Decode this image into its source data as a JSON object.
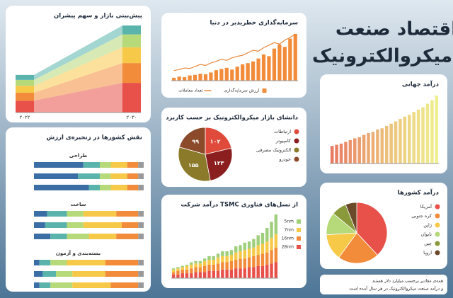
{
  "title_lines": [
    "اقتصاد صنعت",
    "میکروالکترونیک"
  ],
  "note_lines": [
    "همه‌ی مقادیر برحسب میلیارد دلار هستند",
    "و درآمد صنعت میکروالکترونیک در هر سال آمده است"
  ],
  "chart_data": [
    {
      "type": "stack",
      "title": "پیش‌بینی بازار و سهم پیشران",
      "categories": [
        "۲۰۲۲",
        "۲۰۳۰"
      ],
      "series": [
        {
          "color": "#e8504a",
          "values": [
            120,
            300
          ]
        },
        {
          "color": "#f28c3b",
          "values": [
            80,
            200
          ]
        },
        {
          "color": "#f7c948",
          "values": [
            70,
            160
          ]
        },
        {
          "color": "#b6d97a",
          "values": [
            60,
            130
          ]
        },
        {
          "color": "#5ab4ac",
          "values": [
            50,
            90
          ]
        }
      ]
    },
    {
      "type": "combo",
      "title": "سرمایه‌گذاری خطرپذیر در دنیا",
      "series": [
        {
          "name": "ارزش سرمایه‌گذاری",
          "kind": "bar",
          "color": "#f28c3b",
          "values": [
            5,
            7,
            6,
            9,
            10,
            12,
            11,
            14,
            18,
            20,
            22,
            19,
            24,
            28,
            30,
            33,
            38,
            45,
            42,
            55,
            62,
            58,
            72,
            80
          ]
        },
        {
          "name": "تعداد معاملات",
          "kind": "line",
          "color": "#e8873a",
          "values": [
            20,
            22,
            25,
            24,
            28,
            32,
            30,
            35,
            38,
            42,
            40,
            45,
            48,
            50,
            55,
            60,
            58,
            65,
            70,
            75,
            72,
            80,
            85,
            92
          ]
        }
      ]
    },
    {
      "type": "pie",
      "title": "دانشای بازار میکروالکترونیک بر حسب کاربرد",
      "categories": [
        "ارتباطات",
        "کامپیوتر",
        "الکترونیک مصرفی",
        "خودرو"
      ],
      "colors": [
        "#e04a3a",
        "#8b1e1e",
        "#8a7a2a",
        "#8b4a2a"
      ],
      "values": [
        102,
        123,
        155,
        99
      ],
      "value_labels": [
        "۱۰۲",
        "۱۲۳",
        "۱۵۵",
        "۹۹"
      ]
    },
    {
      "type": "stack",
      "title": "درآمد شرکت TSMC از نسل‌های فناوری",
      "series": [
        {
          "name": "28nm",
          "color": "#e8504a",
          "values": [
            3,
            3,
            4,
            4,
            4,
            5,
            5,
            5,
            6,
            6,
            6,
            7,
            7,
            7,
            8,
            8,
            8,
            9,
            9,
            10,
            10,
            11,
            12,
            13
          ]
        },
        {
          "name": "16nm",
          "color": "#f28c3b",
          "values": [
            2,
            3,
            3,
            3,
            4,
            4,
            4,
            5,
            5,
            5,
            6,
            6,
            6,
            7,
            7,
            8,
            8,
            8,
            9,
            9,
            10,
            10,
            11,
            12
          ]
        },
        {
          "name": "7nm",
          "color": "#f7c948",
          "values": [
            2,
            2,
            2,
            3,
            3,
            3,
            3,
            4,
            4,
            4,
            5,
            5,
            5,
            5,
            6,
            6,
            7,
            7,
            7,
            8,
            8,
            9,
            10,
            11
          ]
        },
        {
          "name": "5nm",
          "color": "#9fcf7a",
          "values": [
            1,
            1,
            1,
            1,
            2,
            2,
            2,
            2,
            3,
            3,
            3,
            4,
            4,
            4,
            5,
            5,
            6,
            6,
            7,
            8,
            9,
            11,
            13,
            16
          ]
        }
      ]
    },
    {
      "type": "hstack",
      "title": "نقش کشورها در زنجیره‌ی ارزش",
      "colors": [
        "#3a6ea5",
        "#5ab4ac",
        "#b6d97a",
        "#f7c948",
        "#f28c3b",
        "#999999"
      ],
      "groups": [
        {
          "title": "طراحی",
          "rows": [
            [
              45,
              15,
              10,
              15,
              10,
              5
            ],
            [
              40,
              20,
              10,
              15,
              10,
              5
            ],
            [
              50,
              10,
              10,
              15,
              10,
              5
            ]
          ]
        },
        {
          "title": "ساخت",
          "rows": [
            [
              12,
              18,
              15,
              30,
              20,
              5
            ],
            [
              10,
              20,
              15,
              35,
              15,
              5
            ],
            [
              15,
              15,
              20,
              25,
              20,
              5
            ]
          ]
        },
        {
          "title": "بسته‌بندی و آزمون",
          "rows": [
            [
              5,
              10,
              15,
              35,
              30,
              5
            ],
            [
              8,
              12,
              15,
              30,
              30,
              5
            ],
            [
              5,
              10,
              20,
              35,
              25,
              5
            ]
          ]
        }
      ]
    },
    {
      "type": "bar",
      "title": "درآمد جهانی",
      "values": [
        150,
        160,
        170,
        185,
        200,
        215,
        225,
        245,
        260,
        270,
        290,
        300,
        320,
        340,
        360,
        380,
        400,
        415,
        440,
        460,
        480,
        510,
        540,
        580
      ]
    },
    {
      "type": "pie",
      "title": "درآمد کشورها",
      "categories": [
        "آمریکا",
        "کره جنوبی",
        "ژاپن",
        "تایوان",
        "چین",
        "اروپا"
      ],
      "colors": [
        "#e8504a",
        "#f28c3b",
        "#f7c948",
        "#b6d97a",
        "#8a9a3a",
        "#6b4a2a"
      ],
      "values": [
        38,
        22,
        14,
        12,
        8,
        6
      ]
    }
  ]
}
